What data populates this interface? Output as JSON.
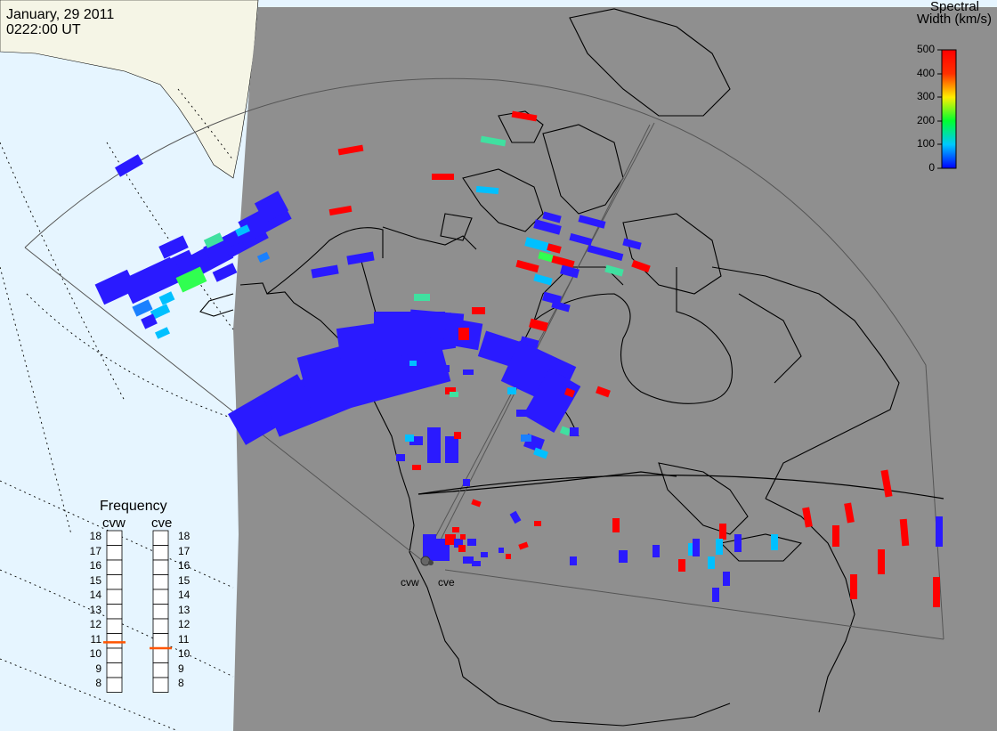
{
  "header": {
    "date": "January, 29 2011",
    "time": "0222:00 UT"
  },
  "colorbar": {
    "title_line1": "Spectral",
    "title_line2": "Width (km/s)",
    "ticks": [
      "500",
      "400",
      "300",
      "200",
      "100",
      "0"
    ]
  },
  "frequency_panel": {
    "title": "Frequency",
    "site_left": "cvw",
    "site_right": "cve",
    "scale": [
      "18",
      "17",
      "16",
      "15",
      "14",
      "13",
      "12",
      "11",
      "10",
      "9",
      "8"
    ],
    "cvw_value_mhz": 10.9,
    "cve_value_mhz": 10.5,
    "marker_color": "#ff5500"
  },
  "radar_sites": {
    "cvw_label": "cvw",
    "cve_label": "cve"
  },
  "colors": {
    "ocean": "#e6f5ff",
    "land_plot": "#8f8f8f",
    "land_light": "#f5f5e6",
    "coastline": "#000000",
    "fov_line": "#555555"
  }
}
